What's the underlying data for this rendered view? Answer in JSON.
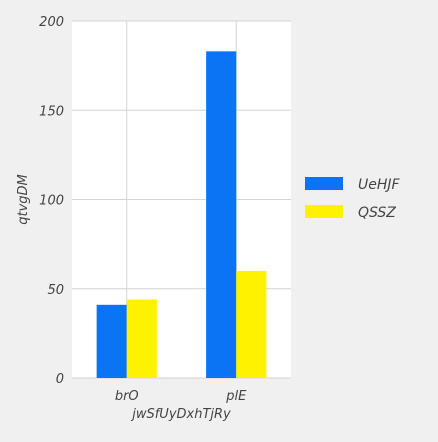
{
  "chart_data": {
    "type": "bar",
    "categories": [
      "brO",
      "plE"
    ],
    "series": [
      {
        "name": "UeHJF",
        "color": "#0a74f5",
        "values": [
          41,
          183
        ]
      },
      {
        "name": "QSSZ",
        "color": "#fff200",
        "values": [
          44,
          60
        ]
      }
    ],
    "xlabel": "jwSfUyDxhTjRy",
    "ylabel": "qtvgDM",
    "ylim": [
      0,
      200
    ],
    "yticks": [
      0,
      50,
      100,
      150,
      200
    ],
    "grid": true,
    "legend_position": "right"
  },
  "colors": {
    "background": "#f0f0f0",
    "plot_background": "#ffffff",
    "grid": "#d4d4d4",
    "text": "#444444"
  }
}
